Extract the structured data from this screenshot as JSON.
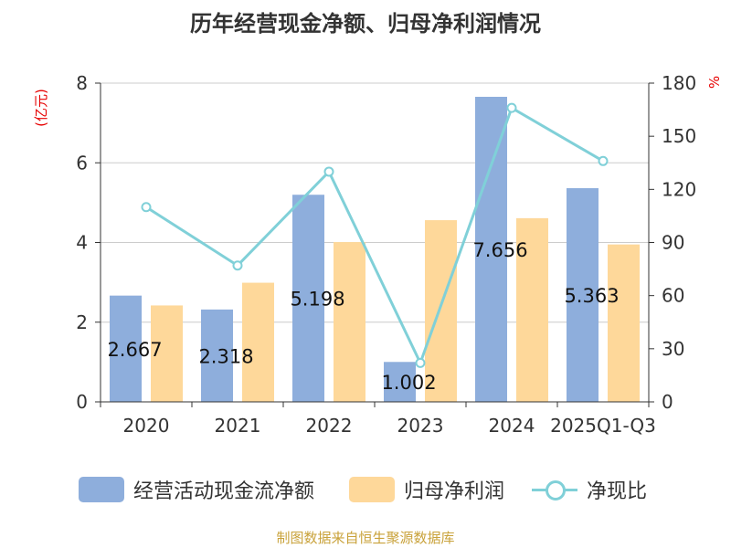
{
  "chart_data": {
    "type": "bar",
    "title": "历年经营现金净额、归母净利润情况",
    "categories": [
      "2020",
      "2021",
      "2022",
      "2023",
      "2024",
      "2025Q1-Q3"
    ],
    "series": [
      {
        "name": "经营活动现金流净额",
        "kind": "bar",
        "axis": "left",
        "color": "#8eaedc",
        "values": [
          2.667,
          2.318,
          5.198,
          1.002,
          7.656,
          5.363
        ],
        "labels": [
          "2.667",
          "2.318",
          "5.198",
          "1.002",
          "7.656",
          "5.363"
        ]
      },
      {
        "name": "归母净利润",
        "kind": "bar",
        "axis": "left",
        "color": "#fed89a",
        "values": [
          2.42,
          2.99,
          4.01,
          4.56,
          4.61,
          3.95
        ]
      },
      {
        "name": "净现比",
        "kind": "line",
        "axis": "right",
        "color": "#80d0d8",
        "values": [
          110,
          77,
          130,
          22,
          166,
          136
        ]
      }
    ],
    "y_left": {
      "unit": "(亿元)",
      "min": 0,
      "max": 8,
      "ticks": [
        "0",
        "2",
        "4",
        "6",
        "8"
      ]
    },
    "y_right": {
      "unit": "%",
      "min": 0,
      "max": 180,
      "ticks": [
        "0",
        "30",
        "60",
        "90",
        "120",
        "150",
        "180"
      ]
    },
    "grid": true,
    "legend_position": "bottom",
    "source": "制图数据来自恒生聚源数据库"
  }
}
